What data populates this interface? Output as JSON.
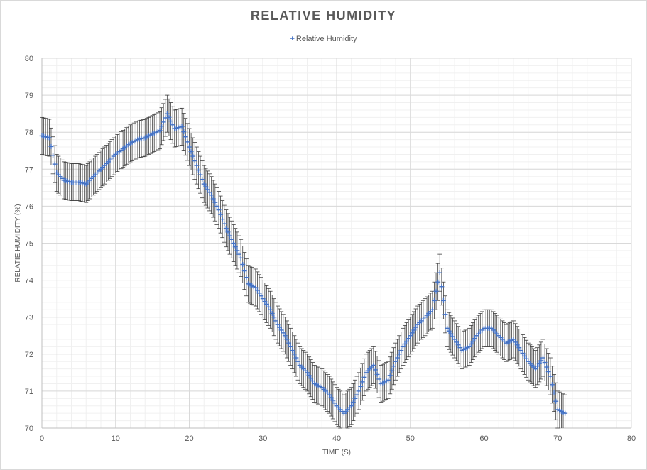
{
  "chart_data": {
    "type": "scatter",
    "title": "RELATIVE HUMIDITY",
    "xlabel": "TIME (S)",
    "ylabel": "RELATIE HUMIDITY (%)",
    "xlim": [
      0,
      80
    ],
    "ylim": [
      70,
      80
    ],
    "xticks": [
      "0",
      "10",
      "20",
      "30",
      "40",
      "50",
      "60",
      "70",
      "80"
    ],
    "yticks": [
      "70",
      "71",
      "72",
      "73",
      "74",
      "75",
      "76",
      "77",
      "78",
      "79",
      "80"
    ],
    "grid": true,
    "legend_position": "top-center",
    "marker_color": "#4472c4",
    "errorbar_color": "#404040",
    "error": 0.5,
    "series": [
      {
        "name": "Relative Humidity",
        "x": [
          0,
          1,
          2,
          3,
          4,
          5,
          6,
          7,
          8,
          9,
          10,
          11,
          12,
          13,
          14,
          15,
          16,
          17,
          18,
          19,
          20,
          21,
          22,
          23,
          24,
          25,
          26,
          27,
          28,
          29,
          30,
          31,
          32,
          33,
          34,
          35,
          36,
          37,
          38,
          39,
          40,
          41,
          42,
          43,
          44,
          45,
          46,
          47,
          48,
          49,
          50,
          51,
          52,
          53,
          54,
          55,
          56,
          57,
          58,
          59,
          60,
          61,
          62,
          63,
          64,
          65,
          66,
          67,
          68,
          69,
          70,
          71
        ],
        "y": [
          77.9,
          77.85,
          76.9,
          76.7,
          76.65,
          76.65,
          76.6,
          76.8,
          77.0,
          77.2,
          77.4,
          77.55,
          77.7,
          77.8,
          77.85,
          77.95,
          78.05,
          78.5,
          78.1,
          78.15,
          77.6,
          77.1,
          76.6,
          76.3,
          75.9,
          75.4,
          75.0,
          74.6,
          73.9,
          73.8,
          73.5,
          73.2,
          72.8,
          72.5,
          72.1,
          71.7,
          71.5,
          71.2,
          71.1,
          70.9,
          70.6,
          70.4,
          70.6,
          71.0,
          71.5,
          71.7,
          71.2,
          71.3,
          71.8,
          72.2,
          72.5,
          72.8,
          73.0,
          73.2,
          74.2,
          72.7,
          72.4,
          72.1,
          72.2,
          72.5,
          72.7,
          72.7,
          72.5,
          72.3,
          72.4,
          72.1,
          71.8,
          71.6,
          71.9,
          71.4,
          70.5,
          70.4
        ]
      }
    ]
  }
}
